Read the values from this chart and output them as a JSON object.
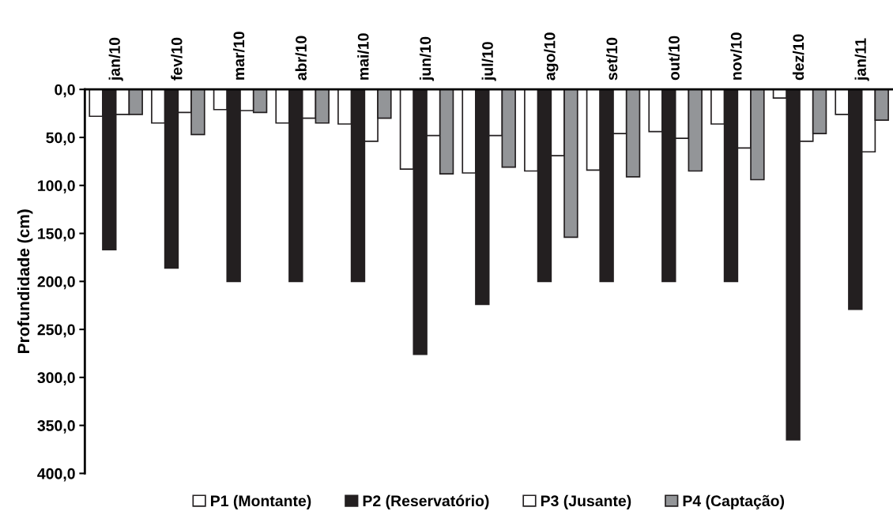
{
  "chart_data": {
    "type": "bar",
    "ylabel": "Profundidade (cm)",
    "categories": [
      "jan/10",
      "fev/10",
      "mar/10",
      "abr/10",
      "mai/10",
      "jun/10",
      "jul/10",
      "ago/10",
      "set/10",
      "out/10",
      "nov/10",
      "dez/10",
      "jan/11"
    ],
    "series": [
      {
        "name": "P1 (Montante)",
        "color": "#ffffff",
        "values": [
          28,
          35,
          21,
          35,
          36,
          83,
          87,
          85,
          84,
          44,
          36,
          9,
          26
        ]
      },
      {
        "name": "P2 (Reservatório)",
        "color": "#231f20",
        "values": [
          167,
          186,
          200,
          200,
          200,
          276,
          224,
          200,
          200,
          200,
          200,
          365,
          229
        ]
      },
      {
        "name": "P3 (Jusante)",
        "color": "#ffffff",
        "values": [
          26,
          24,
          22,
          30,
          54,
          48,
          48,
          69,
          46,
          51,
          61,
          54,
          65
        ]
      },
      {
        "name": "P4 (Captação)",
        "color": "#939598",
        "values": [
          26,
          47,
          24,
          35,
          30,
          88,
          81,
          154,
          91,
          85,
          94,
          46,
          32
        ]
      }
    ],
    "ylim": [
      400,
      0
    ],
    "yticks": [
      {
        "value": 0,
        "label": "0,0"
      },
      {
        "value": 50,
        "label": "50,0"
      },
      {
        "value": 100,
        "label": "100,0"
      },
      {
        "value": 150,
        "label": "150,0"
      },
      {
        "value": 200,
        "label": "200,0"
      },
      {
        "value": 250,
        "label": "250,0"
      },
      {
        "value": 300,
        "label": "300,0"
      },
      {
        "value": 350,
        "label": "350,0"
      },
      {
        "value": 400,
        "label": "400,0"
      }
    ],
    "grid": false,
    "legend": "bottom"
  }
}
